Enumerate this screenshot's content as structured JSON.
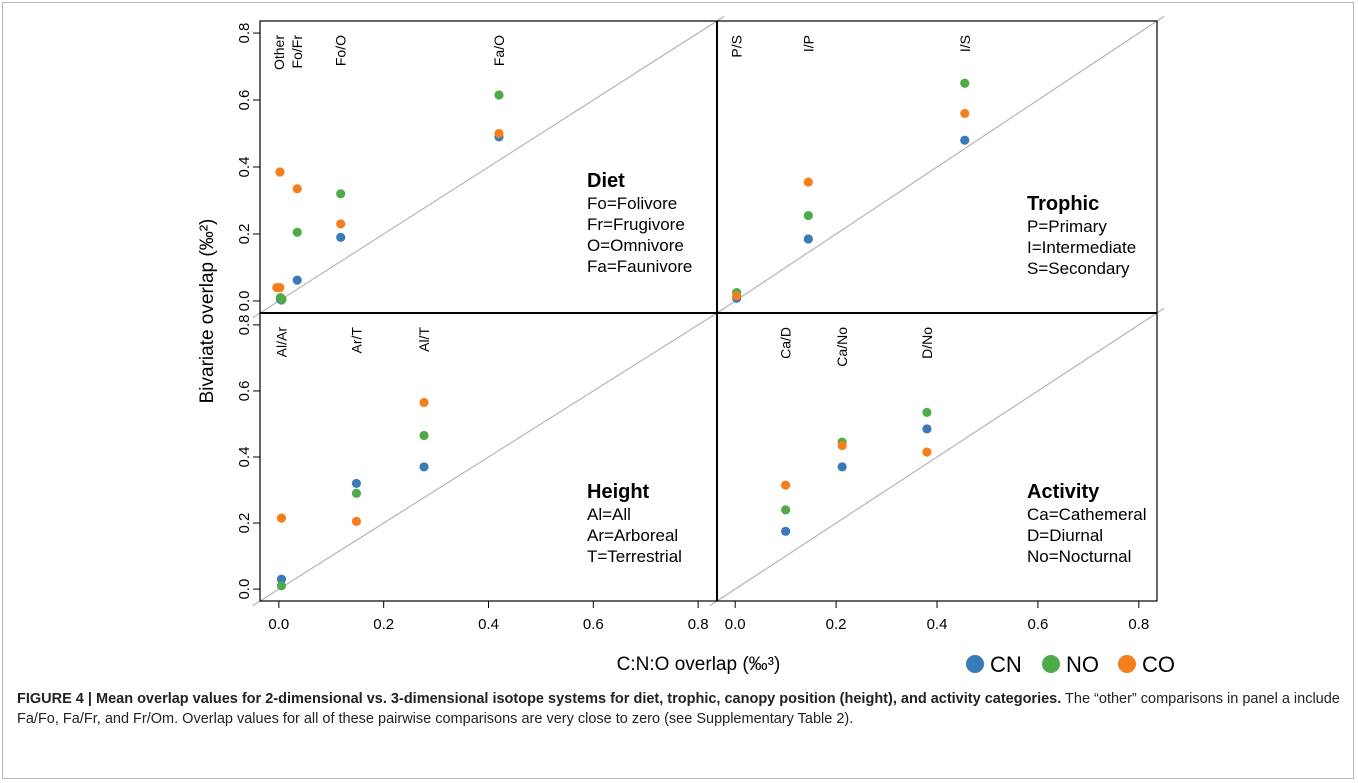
{
  "chart_data": {
    "type": "scatter",
    "xlabel": "C:N:O overlap (‰³)",
    "ylabel": "Bivariate overlap (‰²)",
    "xlim": [
      0,
      0.8
    ],
    "ylim": [
      0,
      0.8
    ],
    "x_ticks": [
      "0.0",
      "0.2",
      "0.4",
      "0.6",
      "0.8"
    ],
    "y_ticks": [
      "0.0",
      "0.2",
      "0.4",
      "0.6",
      "0.8"
    ],
    "reference_line": "y = x",
    "legend": [
      {
        "name": "CN",
        "color": "#3a7ab8"
      },
      {
        "name": "NO",
        "color": "#4fab48"
      },
      {
        "name": "CO",
        "color": "#f47f1c"
      }
    ],
    "legend_position": "bottom-right",
    "panels": [
      {
        "id": "diet",
        "title": "Diet",
        "key": [
          "Fo=Folivore",
          "Fr=Frugivore",
          "O=Omnivore",
          "Fa=Faunivore"
        ],
        "categories": [
          {
            "label": "Other",
            "x": 0.0
          },
          {
            "label": "Fo/Fr",
            "x": 0.035
          },
          {
            "label": "Fo/O",
            "x": 0.118
          },
          {
            "label": "Fa/O",
            "x": 0.42
          }
        ],
        "series": [
          {
            "name": "CN",
            "points": [
              [
                0.003,
                0.005
              ],
              [
                0.005,
                0.003
              ],
              [
                0.035,
                0.062
              ],
              [
                0.118,
                0.19
              ],
              [
                0.42,
                0.49
              ]
            ]
          },
          {
            "name": "NO",
            "points": [
              [
                0.003,
                0.01
              ],
              [
                0.006,
                0.005
              ],
              [
                0.035,
                0.205
              ],
              [
                0.118,
                0.32
              ],
              [
                0.42,
                0.615
              ]
            ]
          },
          {
            "name": "CO",
            "points": [
              [
                -0.004,
                0.04
              ],
              [
                0.002,
                0.04
              ],
              [
                0.002,
                0.385
              ],
              [
                0.035,
                0.335
              ],
              [
                0.118,
                0.23
              ],
              [
                0.42,
                0.5
              ]
            ]
          }
        ]
      },
      {
        "id": "trophic",
        "title": "Trophic",
        "key": [
          "P=Primary",
          "I=Intermediate",
          "S=Secondary"
        ],
        "categories": [
          {
            "label": "P/S",
            "x": 0.003
          },
          {
            "label": "I/P",
            "x": 0.145
          },
          {
            "label": "I/S",
            "x": 0.455
          }
        ],
        "series": [
          {
            "name": "CN",
            "points": [
              [
                0.003,
                0.008
              ],
              [
                0.145,
                0.185
              ],
              [
                0.455,
                0.48
              ]
            ]
          },
          {
            "name": "NO",
            "points": [
              [
                0.003,
                0.025
              ],
              [
                0.145,
                0.255
              ],
              [
                0.455,
                0.65
              ]
            ]
          },
          {
            "name": "CO",
            "points": [
              [
                0.003,
                0.015
              ],
              [
                0.145,
                0.355
              ],
              [
                0.455,
                0.56
              ]
            ]
          }
        ]
      },
      {
        "id": "height",
        "title": "Height",
        "key": [
          "Al=All",
          "Ar=Arboreal",
          "T=Terrestrial"
        ],
        "categories": [
          {
            "label": "Al/Ar",
            "x": 0.005
          },
          {
            "label": "Ar/T",
            "x": 0.148
          },
          {
            "label": "Al/T",
            "x": 0.277
          }
        ],
        "series": [
          {
            "name": "CN",
            "points": [
              [
                0.005,
                0.03
              ],
              [
                0.148,
                0.32
              ],
              [
                0.277,
                0.37
              ]
            ]
          },
          {
            "name": "NO",
            "points": [
              [
                0.005,
                0.01
              ],
              [
                0.148,
                0.29
              ],
              [
                0.277,
                0.465
              ]
            ]
          },
          {
            "name": "CO",
            "points": [
              [
                0.005,
                0.215
              ],
              [
                0.148,
                0.205
              ],
              [
                0.277,
                0.565
              ]
            ]
          }
        ]
      },
      {
        "id": "activity",
        "title": "Activity",
        "key": [
          "Ca=Cathemeral",
          "D=Diurnal",
          "No=Nocturnal"
        ],
        "categories": [
          {
            "label": "Ca/D",
            "x": 0.1
          },
          {
            "label": "Ca/No",
            "x": 0.212
          },
          {
            "label": "D/No",
            "x": 0.38
          }
        ],
        "series": [
          {
            "name": "CN",
            "points": [
              [
                0.1,
                0.175
              ],
              [
                0.212,
                0.37
              ],
              [
                0.38,
                0.485
              ]
            ]
          },
          {
            "name": "NO",
            "points": [
              [
                0.1,
                0.24
              ],
              [
                0.212,
                0.445
              ],
              [
                0.38,
                0.535
              ]
            ]
          },
          {
            "name": "CO",
            "points": [
              [
                0.1,
                0.315
              ],
              [
                0.212,
                0.435
              ],
              [
                0.38,
                0.415
              ]
            ]
          }
        ]
      }
    ]
  },
  "caption": {
    "bold": "FIGURE 4 | Mean overlap values for 2-dimensional vs. 3-dimensional isotope systems for diet, trophic, canopy position (height), and activity categories.",
    "text": " The “other” comparisons in panel a include Fa/Fo, Fa/Fr, and Fr/Om. Overlap values for all of these pairwise comparisons are very close to zero (see Supplementary Table 2)."
  }
}
